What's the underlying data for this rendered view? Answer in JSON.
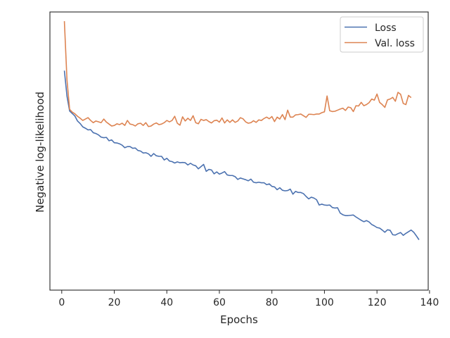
{
  "chart_data": {
    "type": "line",
    "title": "",
    "xlabel": "Epochs",
    "ylabel": "Negative log-likelihood",
    "xlim": [
      -4.5,
      139.5
    ],
    "ylim": [
      0,
      1
    ],
    "x_ticks": [
      0,
      20,
      40,
      60,
      80,
      100,
      120,
      140
    ],
    "y_ticks_labeled": false,
    "grid": false,
    "legend_position": "top-right",
    "series": [
      {
        "name": "Loss",
        "color": "#4c72b0",
        "x_start": 1,
        "values": [
          0.789,
          0.697,
          0.644,
          0.635,
          0.626,
          0.608,
          0.599,
          0.587,
          0.582,
          0.576,
          0.577,
          0.566,
          0.563,
          0.558,
          0.55,
          0.548,
          0.549,
          0.537,
          0.54,
          0.53,
          0.529,
          0.526,
          0.521,
          0.512,
          0.516,
          0.516,
          0.51,
          0.511,
          0.502,
          0.5,
          0.493,
          0.494,
          0.49,
          0.481,
          0.491,
          0.483,
          0.481,
          0.481,
          0.468,
          0.474,
          0.464,
          0.462,
          0.457,
          0.461,
          0.458,
          0.459,
          0.458,
          0.45,
          0.456,
          0.45,
          0.447,
          0.436,
          0.444,
          0.452,
          0.427,
          0.434,
          0.432,
          0.418,
          0.425,
          0.417,
          0.421,
          0.426,
          0.414,
          0.412,
          0.412,
          0.408,
          0.398,
          0.403,
          0.4,
          0.397,
          0.393,
          0.399,
          0.388,
          0.386,
          0.388,
          0.386,
          0.386,
          0.379,
          0.382,
          0.373,
          0.371,
          0.361,
          0.368,
          0.359,
          0.357,
          0.358,
          0.363,
          0.345,
          0.355,
          0.351,
          0.351,
          0.347,
          0.337,
          0.328,
          0.334,
          0.331,
          0.325,
          0.306,
          0.309,
          0.306,
          0.305,
          0.306,
          0.297,
          0.295,
          0.296,
          0.277,
          0.271,
          0.268,
          0.268,
          0.269,
          0.27,
          0.263,
          0.257,
          0.251,
          0.246,
          0.25,
          0.245,
          0.236,
          0.231,
          0.225,
          0.223,
          0.216,
          0.208,
          0.217,
          0.215,
          0.199,
          0.198,
          0.203,
          0.207,
          0.197,
          0.204,
          0.21,
          0.216,
          0.208,
          0.195,
          0.181
        ]
      },
      {
        "name": "Val. loss",
        "color": "#dd8452",
        "x_start": 1,
        "values": [
          0.967,
          0.755,
          0.65,
          0.64,
          0.634,
          0.625,
          0.618,
          0.61,
          0.615,
          0.62,
          0.61,
          0.602,
          0.608,
          0.605,
          0.602,
          0.615,
          0.604,
          0.597,
          0.59,
          0.592,
          0.598,
          0.595,
          0.6,
          0.592,
          0.61,
          0.597,
          0.595,
          0.59,
          0.598,
          0.6,
          0.592,
          0.602,
          0.588,
          0.59,
          0.597,
          0.601,
          0.595,
          0.597,
          0.602,
          0.61,
          0.605,
          0.61,
          0.625,
          0.6,
          0.593,
          0.623,
          0.608,
          0.618,
          0.61,
          0.627,
          0.602,
          0.598,
          0.614,
          0.61,
          0.613,
          0.606,
          0.601,
          0.609,
          0.611,
          0.604,
          0.619,
          0.601,
          0.612,
          0.603,
          0.612,
          0.603,
          0.608,
          0.62,
          0.616,
          0.605,
          0.6,
          0.602,
          0.609,
          0.603,
          0.612,
          0.61,
          0.617,
          0.622,
          0.616,
          0.624,
          0.606,
          0.622,
          0.615,
          0.631,
          0.613,
          0.647,
          0.622,
          0.622,
          0.63,
          0.631,
          0.633,
          0.627,
          0.621,
          0.632,
          0.632,
          0.631,
          0.633,
          0.633,
          0.638,
          0.641,
          0.698,
          0.645,
          0.642,
          0.643,
          0.647,
          0.651,
          0.654,
          0.646,
          0.658,
          0.656,
          0.642,
          0.663,
          0.662,
          0.675,
          0.663,
          0.667,
          0.674,
          0.687,
          0.683,
          0.705,
          0.675,
          0.667,
          0.657,
          0.684,
          0.687,
          0.693,
          0.679,
          0.711,
          0.704,
          0.671,
          0.667,
          0.7,
          0.692
        ]
      }
    ]
  }
}
